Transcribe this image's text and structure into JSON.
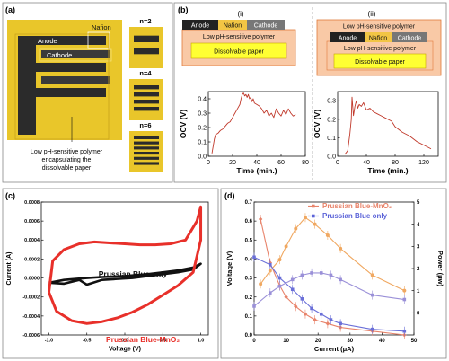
{
  "panel_a": {
    "label": "(a)",
    "device": {
      "anode": "Anode",
      "cathode": "Cathode",
      "nafion": "Nafion"
    },
    "caption_lines": [
      "Low pH-sensitive polymer",
      "encapsulating the",
      "dissolvable paper"
    ],
    "thumbnails": [
      {
        "label": "n=2",
        "pairs": 2
      },
      {
        "label": "n=4",
        "pairs": 4
      },
      {
        "label": "n=6",
        "pairs": 6
      }
    ],
    "colors": {
      "gold": "#e9c62a",
      "dark": "#2b2b2b",
      "frame": "#d9b92a"
    }
  },
  "panel_b": {
    "label": "(b)",
    "sub_i": {
      "label": "(i)",
      "stack": {
        "anode": "Anode",
        "nafion": "Nafion",
        "cathode": "Cathode",
        "polymer": "Low pH-sensitive polymer",
        "paper": "Dissolvable paper"
      }
    },
    "sub_ii": {
      "label": "(ii)",
      "stack": {
        "top_polymer": "Low pH-sensitive polymer",
        "anode": "Anode",
        "nafion": "Nafion",
        "cathode": "Cathode",
        "polymer": "Low pH-sensitive polymer",
        "paper": "Dissolvable paper"
      }
    },
    "colors": {
      "anode": "#222222",
      "nafion": "#f2c544",
      "cathode": "#777777",
      "polymer": "#f9c9a6",
      "paper": "#ffff33",
      "outline": "#e07a3b"
    }
  },
  "panel_c": {
    "label": "(c)"
  },
  "panel_d": {
    "label": "(d)"
  },
  "chart_data": [
    {
      "id": "b-i",
      "type": "line",
      "xlabel": "Time (min.)",
      "ylabel": "OCV (V)",
      "xlim": [
        0,
        80
      ],
      "ylim": [
        0,
        0.45
      ],
      "xticks": [
        0,
        20,
        40,
        60,
        80
      ],
      "yticks": [
        0.0,
        0.1,
        0.2,
        0.3,
        0.4
      ],
      "ytick_labels": [
        "0.0",
        "0.1",
        "0.2",
        "0.3",
        "0.4"
      ],
      "color": "#c0392b",
      "series": [
        {
          "x": [
            3,
            5,
            6,
            8,
            10,
            12,
            14,
            16,
            18,
            20,
            22,
            24,
            26,
            27,
            28,
            29,
            30,
            31,
            32,
            33,
            34,
            35,
            36,
            37,
            38,
            40,
            42,
            44,
            46,
            48,
            50,
            52,
            54,
            56,
            58,
            60,
            62,
            64,
            66,
            68,
            70,
            72
          ],
          "y": [
            0.02,
            0.12,
            0.15,
            0.16,
            0.18,
            0.19,
            0.21,
            0.23,
            0.24,
            0.27,
            0.3,
            0.33,
            0.36,
            0.4,
            0.43,
            0.44,
            0.42,
            0.43,
            0.41,
            0.43,
            0.4,
            0.41,
            0.38,
            0.4,
            0.37,
            0.36,
            0.35,
            0.33,
            0.3,
            0.32,
            0.28,
            0.3,
            0.27,
            0.33,
            0.3,
            0.28,
            0.32,
            0.29,
            0.33,
            0.3,
            0.28,
            0.29
          ]
        }
      ]
    },
    {
      "id": "b-ii",
      "type": "line",
      "xlabel": "Time (min.)",
      "ylabel": "OCV (V)",
      "xlim": [
        0,
        140
      ],
      "ylim": [
        0,
        0.35
      ],
      "xticks": [
        0,
        40,
        80,
        120
      ],
      "yticks": [
        0.0,
        0.1,
        0.2,
        0.3
      ],
      "ytick_labels": [
        "0.0",
        "0.1",
        "0.2",
        "0.3"
      ],
      "color": "#c0392b",
      "series": [
        {
          "x": [
            10,
            14,
            17,
            19,
            20,
            22,
            24,
            26,
            28,
            30,
            33,
            36,
            40,
            45,
            50,
            55,
            60,
            65,
            70,
            75,
            80,
            90,
            100,
            110,
            120,
            130
          ],
          "y": [
            0.01,
            0.03,
            0.12,
            0.2,
            0.32,
            0.22,
            0.27,
            0.3,
            0.26,
            0.28,
            0.27,
            0.29,
            0.25,
            0.26,
            0.24,
            0.23,
            0.22,
            0.21,
            0.2,
            0.19,
            0.16,
            0.13,
            0.11,
            0.08,
            0.06,
            0.04
          ]
        }
      ]
    },
    {
      "id": "c",
      "type": "line",
      "xlabel": "Voltage (V)",
      "ylabel": "Current (A)",
      "xlim": [
        -1.1,
        1.1
      ],
      "ylim": [
        -0.0006,
        0.0008
      ],
      "xticks": [
        -1.0,
        -0.5,
        0.0,
        0.5,
        1.0
      ],
      "xtick_labels": [
        "-1.0",
        "-0.5",
        "0.0",
        "0.5",
        "1.0"
      ],
      "yticks": [
        -0.0006,
        -0.0004,
        -0.0002,
        0.0,
        0.0002,
        0.0004,
        0.0006,
        0.0008
      ],
      "ytick_labels": [
        "-0.0006",
        "-0.0004",
        "-0.0002",
        "0.0000",
        "0.0002",
        "0.0004",
        "0.0006",
        "0.0008"
      ],
      "series": [
        {
          "name": "Prussian Blue only",
          "color": "#111111",
          "x": [
            -1.0,
            -0.8,
            -0.5,
            -0.3,
            0.0,
            0.3,
            0.5,
            0.7,
            0.9,
            1.0,
            0.9,
            0.7,
            0.5,
            0.3,
            0.1,
            -0.1,
            -0.3,
            -0.5,
            -0.6,
            -0.8,
            -1.0
          ],
          "y": [
            -5e-05,
            -2e-05,
            0.0,
            1e-05,
            2e-05,
            4e-05,
            6e-05,
            8e-05,
            0.00011,
            0.00015,
            9e-05,
            6e-05,
            4e-05,
            2e-05,
            0.0,
            -1e-05,
            -2e-05,
            -7e-05,
            -2e-05,
            -6e-05,
            -5e-05
          ]
        },
        {
          "name": "Prussian Blue-MnO₂",
          "color": "#e8302a",
          "x": [
            -1.0,
            -0.95,
            -0.8,
            -0.6,
            -0.4,
            -0.2,
            0.0,
            0.2,
            0.4,
            0.6,
            0.8,
            0.95,
            1.0,
            1.0,
            0.9,
            0.7,
            0.5,
            0.3,
            0.1,
            -0.1,
            -0.3,
            -0.5,
            -0.7,
            -0.9,
            -1.0
          ],
          "y": [
            -0.00015,
            0.00018,
            0.0003,
            0.00036,
            0.00038,
            0.00037,
            0.00036,
            0.00035,
            0.00035,
            0.00036,
            0.0004,
            0.0006,
            0.00075,
            0.0004,
            6e-05,
            -8e-05,
            -0.00018,
            -0.00028,
            -0.00036,
            -0.00042,
            -0.00046,
            -0.00048,
            -0.00045,
            -0.00035,
            -0.00015
          ]
        }
      ]
    },
    {
      "id": "d",
      "type": "line",
      "xlabel": "Current (μA)",
      "ylabel": "Voltage (V)",
      "y2label": "Power (μw)",
      "xlim": [
        0,
        50
      ],
      "ylim": [
        0,
        0.7
      ],
      "y2lim": [
        -1,
        5
      ],
      "xticks": [
        0,
        10,
        20,
        30,
        40,
        50
      ],
      "yticks": [
        0.0,
        0.1,
        0.2,
        0.3,
        0.4,
        0.5,
        0.6,
        0.7
      ],
      "ytick_labels": [
        "0.0",
        "0.1",
        "0.2",
        "0.3",
        "0.4",
        "0.5",
        "0.6",
        "0.7"
      ],
      "y2ticks": [
        0,
        1,
        2,
        3,
        4,
        5
      ],
      "legend_position": "top-right",
      "series": [
        {
          "name": "Prussian Blue-MnO₂",
          "color": "#e8836a",
          "axis": "left",
          "marker": "diamond",
          "x": [
            2,
            5,
            8,
            10,
            13,
            16,
            19,
            23,
            27,
            37,
            47
          ],
          "y": [
            0.61,
            0.38,
            0.26,
            0.2,
            0.15,
            0.11,
            0.08,
            0.06,
            0.04,
            0.02,
            0.0
          ]
        },
        {
          "name": "Prussian Blue-MnO₂",
          "color": "#f0a861",
          "axis": "right",
          "marker": "circle",
          "x": [
            2,
            5,
            8,
            10,
            13,
            16,
            19,
            23,
            27,
            37,
            47
          ],
          "y": [
            1.3,
            1.9,
            2.4,
            3.0,
            3.8,
            4.3,
            4.0,
            3.5,
            2.9,
            1.7,
            1.0
          ]
        },
        {
          "name": "Prussian Blue only",
          "color": "#6a6fd8",
          "axis": "left",
          "marker": "square",
          "x": [
            0,
            5,
            8,
            12,
            15,
            18,
            21,
            24,
            27,
            37,
            47
          ],
          "y": [
            0.41,
            0.37,
            0.3,
            0.24,
            0.19,
            0.14,
            0.11,
            0.08,
            0.06,
            0.03,
            0.02
          ]
        },
        {
          "name": "Prussian Blue only",
          "color": "#9a90d8",
          "axis": "right",
          "marker": "square",
          "x": [
            0,
            5,
            8,
            12,
            15,
            18,
            21,
            24,
            27,
            37,
            47
          ],
          "y": [
            0.3,
            0.9,
            1.2,
            1.5,
            1.7,
            1.8,
            1.8,
            1.7,
            1.5,
            0.8,
            0.6
          ]
        }
      ],
      "legend": [
        {
          "label": "Prussian Blue-MnO₂",
          "color": "#e8836a"
        },
        {
          "label": "Prussian Blue only",
          "color": "#5b63d8"
        }
      ]
    }
  ]
}
